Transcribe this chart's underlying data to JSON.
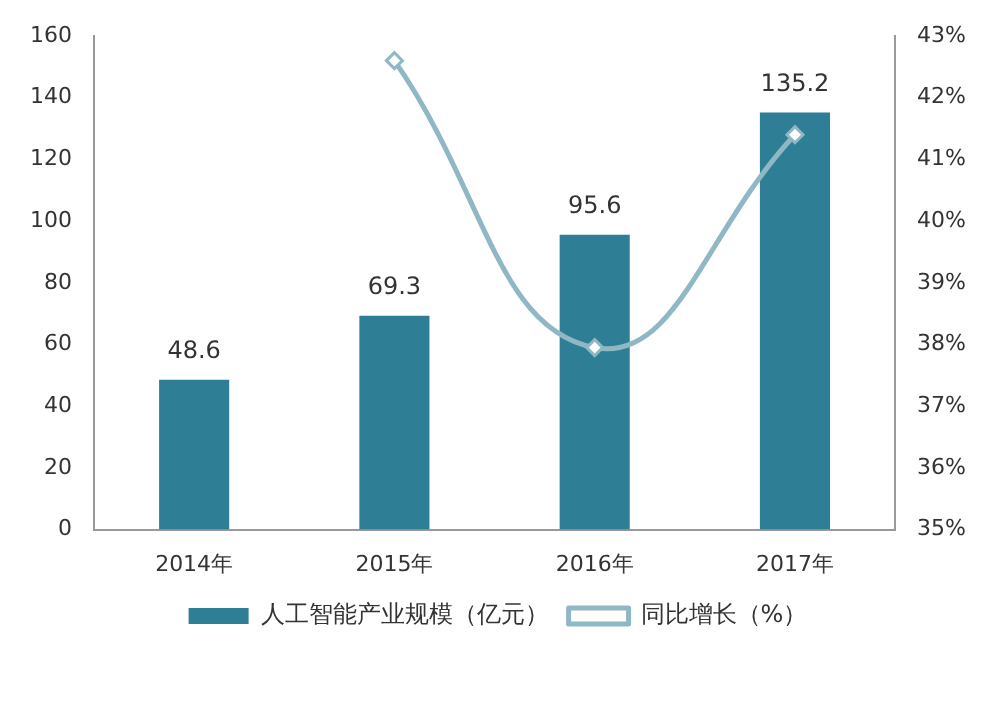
{
  "chart_data": {
    "type": "bar",
    "categories": [
      "2014年",
      "2015年",
      "2016年",
      "2017年"
    ],
    "series": [
      {
        "name": "人工智能产业规模（亿元）",
        "color": "#2e7f96",
        "values": [
          48.6,
          69.3,
          95.6,
          135.2
        ],
        "value_labels": [
          "48.6",
          "69.3",
          "95.6",
          "135.2"
        ]
      },
      {
        "name": "同比增长（%）",
        "type": "line",
        "axis": "y2",
        "color": "#8fb8c4",
        "values": [
          null,
          42.6,
          37.95,
          41.4
        ],
        "marker": "diamond"
      }
    ],
    "ylim": [
      0,
      160
    ],
    "yticks": [
      0,
      20,
      40,
      60,
      80,
      100,
      120,
      140,
      160
    ],
    "y2lim": [
      35,
      43
    ],
    "y2ticks": [
      {
        "value": 35,
        "label": "35%"
      },
      {
        "value": 36,
        "label": "36%"
      },
      {
        "value": 37,
        "label": "37%"
      },
      {
        "value": 38,
        "label": "38%"
      },
      {
        "value": 39,
        "label": "39%"
      },
      {
        "value": 40,
        "label": "40%"
      },
      {
        "value": 41,
        "label": "41%"
      },
      {
        "value": 42,
        "label": "42%"
      },
      {
        "value": 43,
        "label": "43%"
      }
    ],
    "grid": false,
    "legend": "bottom"
  }
}
